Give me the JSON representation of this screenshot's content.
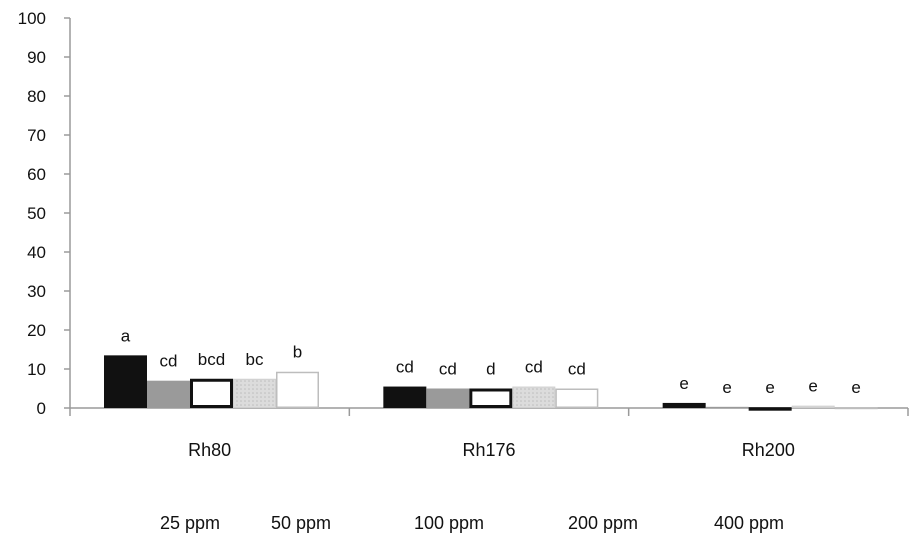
{
  "chart_data": {
    "type": "bar",
    "categories": [
      "Rh80",
      "Rh176",
      "Rh200"
    ],
    "series": [
      {
        "name": "25 ppm",
        "color": "#111111",
        "fill": "solid-black",
        "values": [
          13.5,
          5.5,
          1.3
        ]
      },
      {
        "name": "50 ppm",
        "color": "#9a9a9a",
        "fill": "solid-grey",
        "values": [
          7,
          5,
          0.3
        ]
      },
      {
        "name": "100 ppm",
        "color": "#ffffff",
        "fill": "white-thick-black-border",
        "values": [
          7.5,
          5,
          0.2
        ]
      },
      {
        "name": "200 ppm",
        "color": "#d8d8d8",
        "fill": "light-grey-dotted",
        "values": [
          7.5,
          5.5,
          0.6
        ]
      },
      {
        "name": "400 ppm",
        "color": "#ffffff",
        "fill": "white-thin-grey-border",
        "values": [
          9.3,
          5,
          0.2
        ]
      }
    ],
    "annotations": [
      [
        "a",
        "cd",
        "bcd",
        "bc",
        "b"
      ],
      [
        "cd",
        "cd",
        "d",
        "cd",
        "cd"
      ],
      [
        "e",
        "e",
        "e",
        "e",
        "e"
      ]
    ],
    "ylim": [
      0,
      100
    ],
    "yticks": [
      "0",
      "10",
      "20",
      "30",
      "40",
      "50",
      "60",
      "70",
      "80",
      "90",
      "100"
    ],
    "xlabel": "",
    "ylabel": "",
    "title": "",
    "grid": false,
    "legend": "bottom"
  }
}
